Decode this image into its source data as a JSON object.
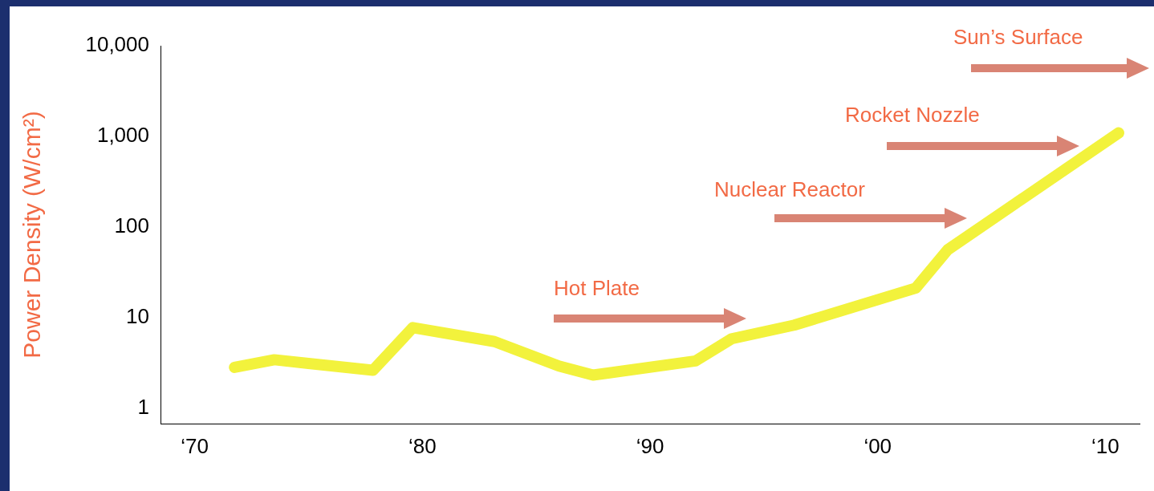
{
  "chart_data": {
    "type": "line",
    "ylabel": "Power Density (W/cm²)",
    "log": "y",
    "grid": false,
    "legend": false,
    "marker": "none",
    "line_style": "solid",
    "xlim": [
      "1968-07",
      "2011-07"
    ],
    "xticks": [
      {
        "value": "1970",
        "label": "‘70"
      },
      {
        "value": "1980",
        "label": "‘80"
      },
      {
        "value": "1990",
        "label": "‘90"
      },
      {
        "value": "2000",
        "label": "‘00"
      },
      {
        "value": "2010",
        "label": "‘10"
      }
    ],
    "ylim": [
      0.67,
      10000
    ],
    "yticks": [
      {
        "value": 1,
        "label": "1"
      },
      {
        "value": 10,
        "label": "10"
      },
      {
        "value": 100,
        "label": "100"
      },
      {
        "value": 1000,
        "label": "1,000"
      },
      {
        "value": 10000,
        "label": "10,000"
      }
    ],
    "series": [
      {
        "color": "#f2f23c",
        "x": [
          "1971-10",
          "1973-07",
          "1975-01",
          "1977-11",
          "1979-08",
          "1983-03",
          "1986-01",
          "1987-07",
          "1992-01",
          "1993-08",
          "1996-05",
          "2001-09",
          "2003-02",
          "2010-08"
        ],
        "values": [
          2.8,
          3.4,
          3.1,
          2.6,
          7.7,
          5.4,
          2.9,
          2.3,
          3.3,
          5.8,
          8.2,
          21,
          56,
          1090
        ]
      }
    ],
    "annotations": [
      "Hot Plate",
      "Nuclear Reactor",
      "Rocket Nozzle",
      "Sun’s Surface"
    ]
  }
}
